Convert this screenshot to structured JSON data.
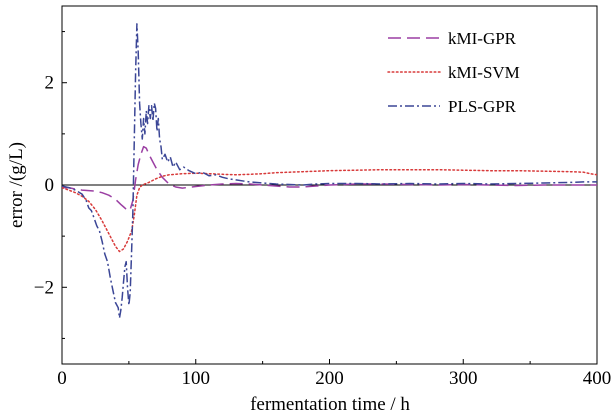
{
  "chart_data": {
    "type": "line",
    "title": "",
    "xlabel": "fermentation time / h",
    "ylabel": "error /(g/L)",
    "xlim": [
      0,
      400
    ],
    "ylim": [
      -3.5,
      3.5
    ],
    "x_ticks": [
      0,
      100,
      200,
      300,
      400
    ],
    "x_tick_labels": [
      "0",
      "100",
      "200",
      "300",
      "400"
    ],
    "y_ticks": [
      -2,
      0,
      2
    ],
    "y_tick_labels": [
      "−2",
      "0",
      "2"
    ],
    "grid": false,
    "legend_position": "top-right",
    "reference_line_y": 0,
    "series": [
      {
        "name": "kMI-GPR",
        "color": "#9b3fa3",
        "dash": "dashed",
        "points": [
          [
            0,
            -0.05
          ],
          [
            5,
            -0.05
          ],
          [
            10,
            -0.08
          ],
          [
            15,
            -0.1
          ],
          [
            20,
            -0.11
          ],
          [
            25,
            -0.12
          ],
          [
            30,
            -0.15
          ],
          [
            35,
            -0.2
          ],
          [
            40,
            -0.28
          ],
          [
            44,
            -0.38
          ],
          [
            47,
            -0.45
          ],
          [
            49,
            -0.5
          ],
          [
            51,
            -0.48
          ],
          [
            53,
            -0.3
          ],
          [
            55,
            0.1
          ],
          [
            57,
            0.4
          ],
          [
            59,
            0.6
          ],
          [
            61,
            0.75
          ],
          [
            63,
            0.72
          ],
          [
            65,
            0.6
          ],
          [
            68,
            0.45
          ],
          [
            71,
            0.3
          ],
          [
            75,
            0.15
          ],
          [
            80,
            0.02
          ],
          [
            85,
            -0.04
          ],
          [
            90,
            -0.06
          ],
          [
            100,
            -0.03
          ],
          [
            110,
            0.0
          ],
          [
            120,
            0.02
          ],
          [
            130,
            0.03
          ],
          [
            140,
            0.02
          ],
          [
            150,
            0.0
          ],
          [
            160,
            -0.02
          ],
          [
            170,
            -0.04
          ],
          [
            180,
            -0.04
          ],
          [
            190,
            -0.02
          ],
          [
            200,
            0.0
          ],
          [
            220,
            0.02
          ],
          [
            240,
            0.02
          ],
          [
            260,
            0.01
          ],
          [
            280,
            0.0
          ],
          [
            300,
            0.01
          ],
          [
            320,
            0.0
          ],
          [
            340,
            -0.01
          ],
          [
            360,
            0.0
          ],
          [
            380,
            0.0
          ],
          [
            400,
            0.0
          ]
        ]
      },
      {
        "name": "kMI-SVM",
        "color": "#d83a3a",
        "dash": "dotted",
        "points": [
          [
            0,
            -0.05
          ],
          [
            5,
            -0.1
          ],
          [
            10,
            -0.15
          ],
          [
            15,
            -0.22
          ],
          [
            20,
            -0.32
          ],
          [
            25,
            -0.48
          ],
          [
            30,
            -0.7
          ],
          [
            35,
            -0.95
          ],
          [
            40,
            -1.2
          ],
          [
            43,
            -1.3
          ],
          [
            46,
            -1.25
          ],
          [
            49,
            -1.1
          ],
          [
            52,
            -0.9
          ],
          [
            54,
            -0.6
          ],
          [
            56,
            -0.2
          ],
          [
            58,
            -0.05
          ],
          [
            60,
            0.0
          ],
          [
            65,
            0.05
          ],
          [
            70,
            0.12
          ],
          [
            75,
            0.17
          ],
          [
            80,
            0.2
          ],
          [
            90,
            0.22
          ],
          [
            100,
            0.23
          ],
          [
            110,
            0.22
          ],
          [
            120,
            0.21
          ],
          [
            130,
            0.2
          ],
          [
            140,
            0.21
          ],
          [
            150,
            0.22
          ],
          [
            160,
            0.24
          ],
          [
            170,
            0.25
          ],
          [
            180,
            0.26
          ],
          [
            190,
            0.27
          ],
          [
            200,
            0.28
          ],
          [
            220,
            0.29
          ],
          [
            240,
            0.3
          ],
          [
            260,
            0.3
          ],
          [
            280,
            0.3
          ],
          [
            300,
            0.29
          ],
          [
            320,
            0.28
          ],
          [
            340,
            0.28
          ],
          [
            360,
            0.27
          ],
          [
            380,
            0.26
          ],
          [
            390,
            0.25
          ],
          [
            395,
            0.22
          ],
          [
            400,
            0.2
          ]
        ]
      },
      {
        "name": "PLS-GPR",
        "color": "#3b4696",
        "dash": "dashdot",
        "points": [
          [
            0,
            -0.02
          ],
          [
            5,
            -0.05
          ],
          [
            10,
            -0.1
          ],
          [
            15,
            -0.18
          ],
          [
            18,
            -0.3
          ],
          [
            20,
            -0.45
          ],
          [
            22,
            -0.5
          ],
          [
            24,
            -0.65
          ],
          [
            26,
            -0.8
          ],
          [
            28,
            -0.9
          ],
          [
            30,
            -1.1
          ],
          [
            32,
            -1.35
          ],
          [
            34,
            -1.5
          ],
          [
            36,
            -1.8
          ],
          [
            38,
            -2.05
          ],
          [
            40,
            -2.3
          ],
          [
            42,
            -2.4
          ],
          [
            43,
            -2.6
          ],
          [
            44,
            -2.45
          ],
          [
            45,
            -2.2
          ],
          [
            46,
            -1.9
          ],
          [
            47,
            -1.6
          ],
          [
            48,
            -1.5
          ],
          [
            49,
            -2.0
          ],
          [
            50,
            -2.35
          ],
          [
            51,
            -2.1
          ],
          [
            52,
            -1.3
          ],
          [
            53,
            -0.5
          ],
          [
            54,
            0.8
          ],
          [
            55,
            2.2
          ],
          [
            56,
            3.15
          ],
          [
            57,
            2.6
          ],
          [
            58,
            1.6
          ],
          [
            59,
            1.2
          ],
          [
            60,
            0.9
          ],
          [
            61,
            1.3
          ],
          [
            62,
            1.0
          ],
          [
            63,
            1.45
          ],
          [
            64,
            1.2
          ],
          [
            65,
            1.55
          ],
          [
            66,
            1.3
          ],
          [
            67,
            1.55
          ],
          [
            68,
            1.25
          ],
          [
            69,
            1.6
          ],
          [
            70,
            1.5
          ],
          [
            71,
            1.05
          ],
          [
            72,
            1.3
          ],
          [
            73,
            0.9
          ],
          [
            74,
            0.75
          ],
          [
            75,
            0.5
          ],
          [
            77,
            0.6
          ],
          [
            79,
            0.45
          ],
          [
            81,
            0.55
          ],
          [
            83,
            0.35
          ],
          [
            85,
            0.45
          ],
          [
            88,
            0.3
          ],
          [
            91,
            0.35
          ],
          [
            95,
            0.28
          ],
          [
            100,
            0.22
          ],
          [
            105,
            0.25
          ],
          [
            110,
            0.18
          ],
          [
            115,
            0.2
          ],
          [
            120,
            0.15
          ],
          [
            125,
            0.12
          ],
          [
            130,
            0.1
          ],
          [
            140,
            0.06
          ],
          [
            150,
            0.04
          ],
          [
            160,
            0.02
          ],
          [
            170,
            0.01
          ],
          [
            180,
            0.0
          ],
          [
            190,
            0.02
          ],
          [
            200,
            0.03
          ],
          [
            220,
            0.03
          ],
          [
            240,
            0.02
          ],
          [
            260,
            0.03
          ],
          [
            280,
            0.02
          ],
          [
            300,
            0.03
          ],
          [
            320,
            0.02
          ],
          [
            340,
            0.03
          ],
          [
            360,
            0.04
          ],
          [
            380,
            0.05
          ],
          [
            390,
            0.06
          ],
          [
            400,
            0.06
          ]
        ]
      }
    ]
  }
}
